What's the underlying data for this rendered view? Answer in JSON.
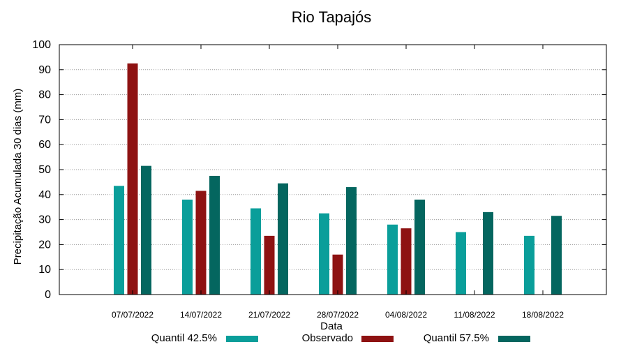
{
  "chart_data": {
    "type": "bar",
    "title": "Rio Tapajós",
    "xlabel": "Data",
    "ylabel": "Precipitação Acumulada 30 dias (mm)",
    "ylim": [
      0,
      100
    ],
    "yticks": [
      0,
      10,
      20,
      30,
      40,
      50,
      60,
      70,
      80,
      90,
      100
    ],
    "grid": true,
    "legend_position": "bottom",
    "categories": [
      "07/07/2022",
      "14/07/2022",
      "21/07/2022",
      "28/07/2022",
      "04/08/2022",
      "11/08/2022",
      "18/08/2022"
    ],
    "series": [
      {
        "name": "Quantil 42.5%",
        "color": "#0a9e9a",
        "values": [
          43.5,
          38.0,
          34.5,
          32.5,
          28.0,
          25.0,
          23.5
        ]
      },
      {
        "name": "Observado",
        "color": "#8e1212",
        "values": [
          92.5,
          41.5,
          23.5,
          16.0,
          26.5,
          null,
          null
        ]
      },
      {
        "name": "Quantil 57.5%",
        "color": "#04665f",
        "values": [
          51.5,
          47.5,
          44.5,
          43.0,
          38.0,
          33.0,
          31.5
        ]
      }
    ]
  }
}
